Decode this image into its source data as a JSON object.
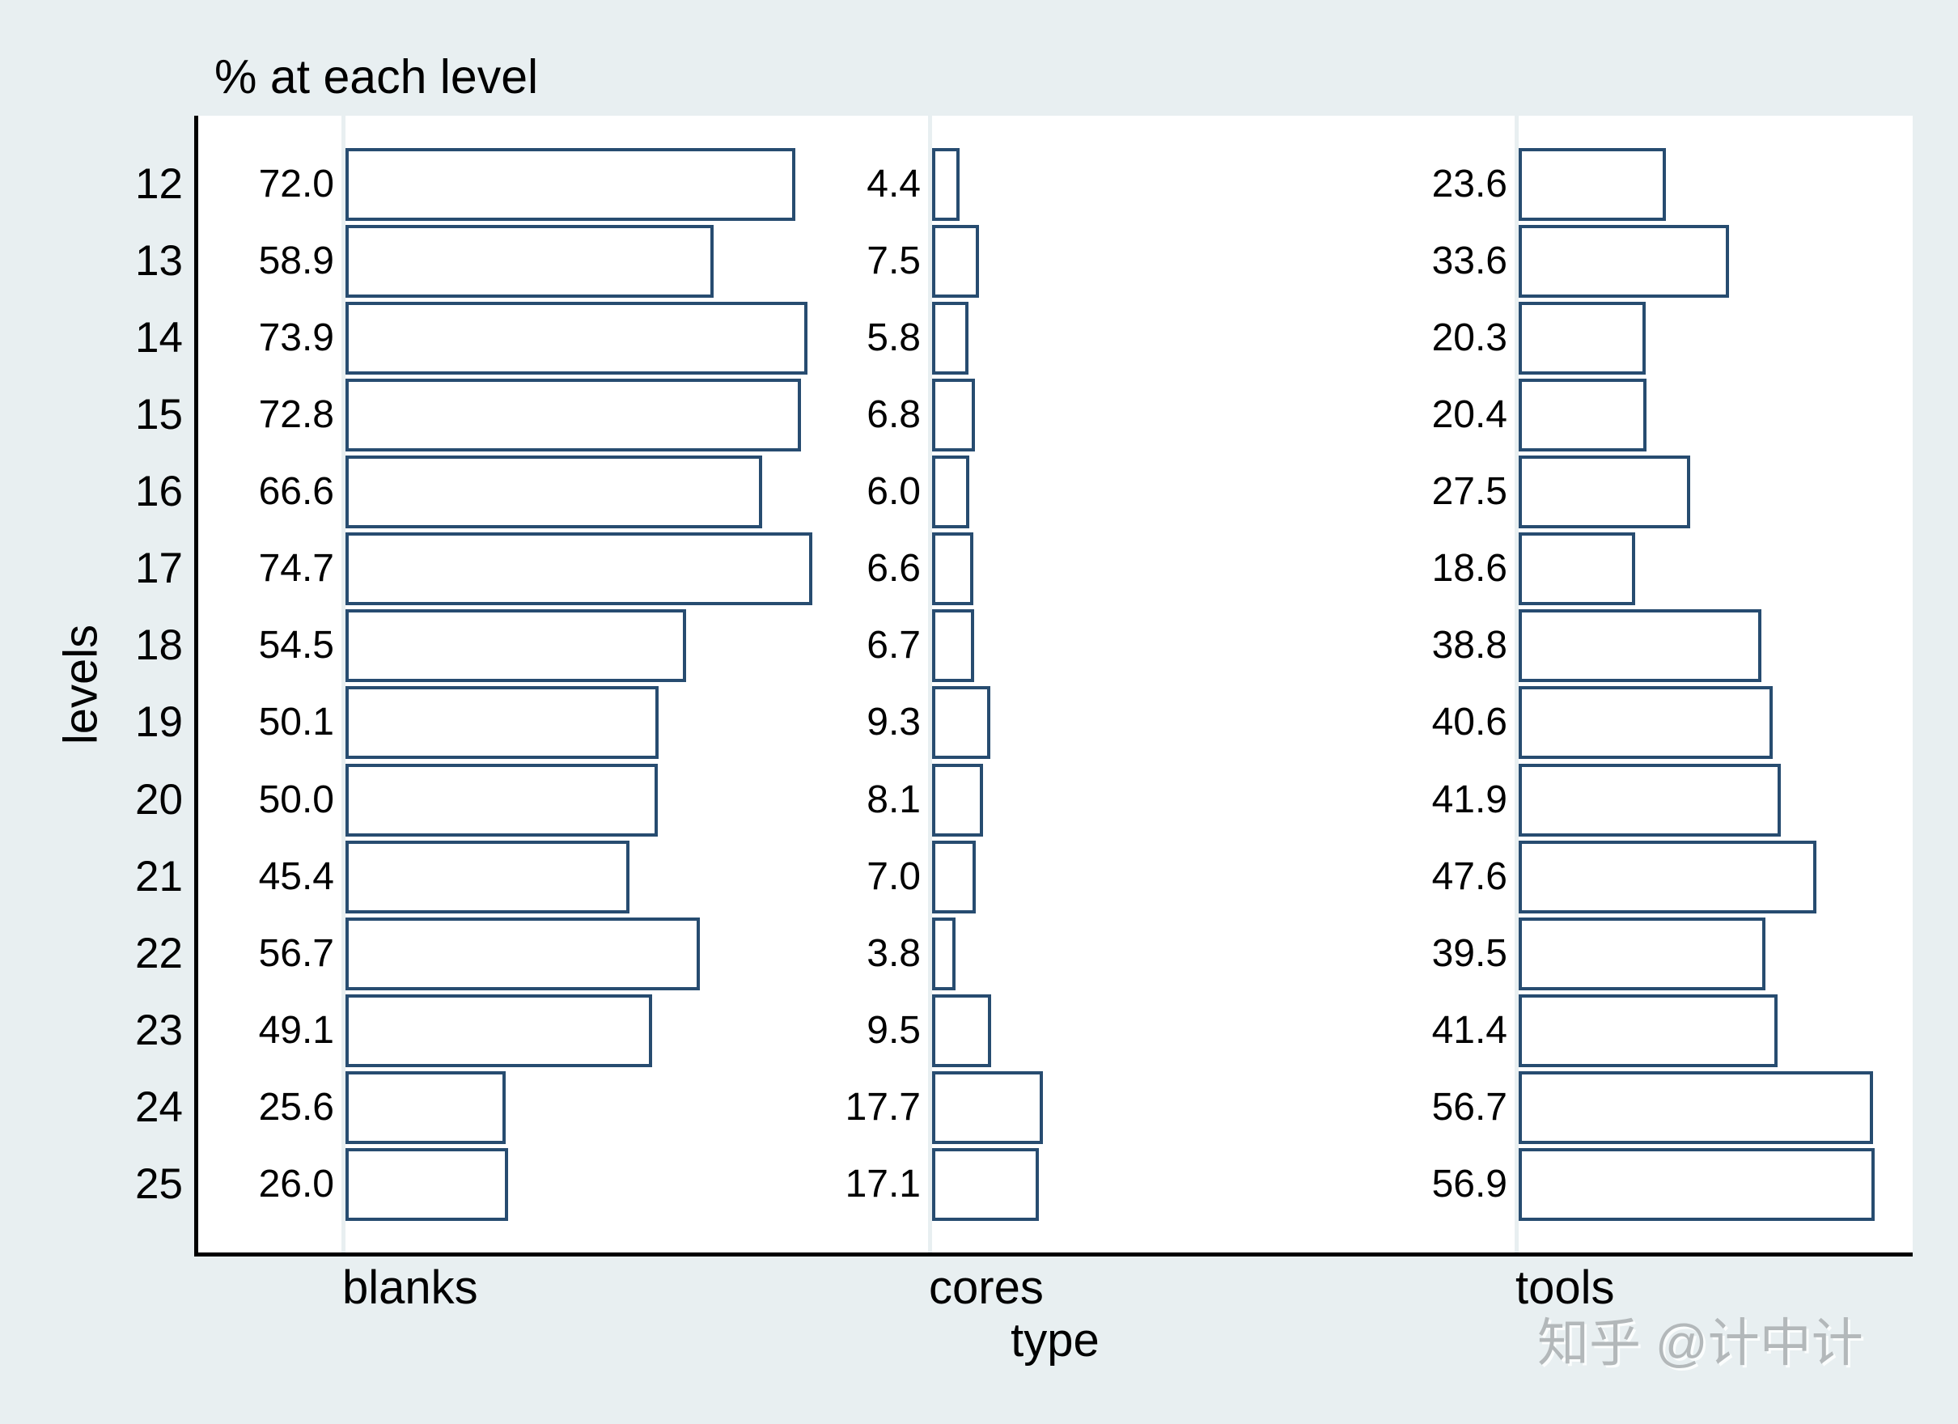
{
  "title": "% at each level",
  "ylabel": "levels",
  "xlabel": "type",
  "watermark": "知乎 @计中计",
  "colors": {
    "background": "#e8eff1",
    "plot_background": "#ffffff",
    "bar_fill": "#ffffff",
    "bar_border": "#274c70",
    "axis_line": "#000000",
    "text": "#000000",
    "watermark_text": "#b3b8ba"
  },
  "chart_data": {
    "type": "bar",
    "orientation": "horizontal",
    "title": "% at each level",
    "xlabel": "type",
    "ylabel": "levels",
    "categories": [
      "12",
      "13",
      "14",
      "15",
      "16",
      "17",
      "18",
      "19",
      "20",
      "21",
      "22",
      "23",
      "24",
      "25"
    ],
    "series": [
      {
        "name": "blanks",
        "values": [
          72.0,
          58.9,
          73.9,
          72.8,
          66.6,
          74.7,
          54.5,
          50.1,
          50.0,
          45.4,
          56.7,
          49.1,
          25.6,
          26.0
        ]
      },
      {
        "name": "cores",
        "values": [
          4.4,
          7.5,
          5.8,
          6.8,
          6.0,
          6.6,
          6.7,
          9.3,
          8.1,
          7.0,
          3.8,
          9.5,
          17.7,
          17.1
        ]
      },
      {
        "name": "tools",
        "values": [
          23.6,
          33.6,
          20.3,
          20.4,
          27.5,
          18.6,
          38.8,
          40.6,
          41.9,
          47.6,
          39.5,
          41.4,
          56.7,
          56.9
        ]
      }
    ],
    "value_label_format": "1 decimal, shown left of each bar",
    "panel_scale_pct_per_panel": 80,
    "grid": "off",
    "legend": "none, panel names shown below each panel"
  }
}
